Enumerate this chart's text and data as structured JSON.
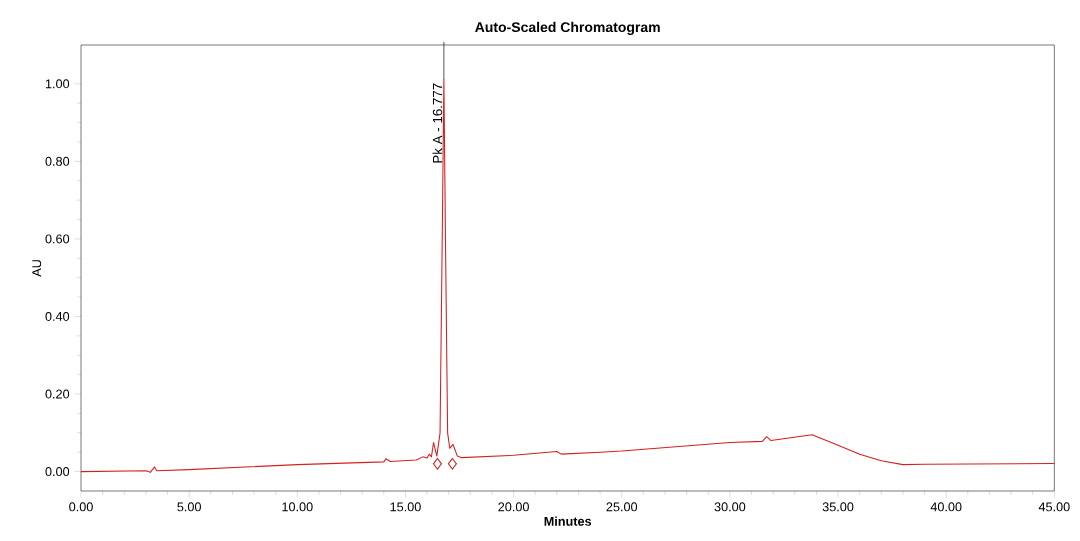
{
  "chart_data": {
    "type": "line",
    "title": "Auto-Scaled Chromatogram",
    "xlabel": "Minutes",
    "ylabel": "AU",
    "xlim": [
      0,
      45
    ],
    "ylim": [
      -0.05,
      1.1
    ],
    "xticks": [
      {
        "value": 0,
        "label": "0.00"
      },
      {
        "value": 5,
        "label": "5.00"
      },
      {
        "value": 10,
        "label": "10.00"
      },
      {
        "value": 15,
        "label": "15.00"
      },
      {
        "value": 20,
        "label": "20.00"
      },
      {
        "value": 25,
        "label": "25.00"
      },
      {
        "value": 30,
        "label": "30.00"
      },
      {
        "value": 35,
        "label": "35.00"
      },
      {
        "value": 40,
        "label": "40.00"
      },
      {
        "value": 45,
        "label": "45.00"
      }
    ],
    "yticks": [
      {
        "value": 0,
        "label": "0.00"
      },
      {
        "value": 0.2,
        "label": "0.20"
      },
      {
        "value": 0.4,
        "label": "0.40"
      },
      {
        "value": 0.6,
        "label": "0.60"
      },
      {
        "value": 0.8,
        "label": "0.80"
      },
      {
        "value": 1.0,
        "label": "1.00"
      }
    ],
    "marker": "none",
    "line_style": "solid",
    "series": [
      {
        "color": "#d42020",
        "x": [
          0,
          3.0,
          3.2,
          3.4,
          3.5,
          5.0,
          10.0,
          14.0,
          14.1,
          14.3,
          15.5,
          15.8,
          16.0,
          16.1,
          16.2,
          16.3,
          16.45,
          16.6,
          16.7,
          16.777,
          16.85,
          16.95,
          17.05,
          17.2,
          17.4,
          17.6,
          20.0,
          22.0,
          22.2,
          24.0,
          25.0,
          30.0,
          31.5,
          31.7,
          31.9,
          33.8,
          35.0,
          36.0,
          37.0,
          38.0,
          39.0,
          45.0
        ],
        "values": [
          0.0,
          0.002,
          -0.002,
          0.012,
          0.002,
          0.005,
          0.018,
          0.025,
          0.033,
          0.026,
          0.03,
          0.038,
          0.035,
          0.045,
          0.038,
          0.075,
          0.04,
          0.1,
          0.6,
          1.01,
          0.6,
          0.1,
          0.06,
          0.07,
          0.04,
          0.036,
          0.042,
          0.052,
          0.045,
          0.05,
          0.053,
          0.075,
          0.078,
          0.09,
          0.08,
          0.095,
          0.068,
          0.045,
          0.028,
          0.018,
          0.019,
          0.021
        ]
      },
      {
        "type": "scatter",
        "marker": "diamond",
        "color": "#d42020",
        "x": [
          16.48,
          17.17
        ],
        "values": [
          0.02,
          0.02
        ]
      }
    ],
    "annotations": [
      {
        "text": "Pk A - 16.777",
        "x": 16.777,
        "y": 1.01
      }
    ]
  }
}
